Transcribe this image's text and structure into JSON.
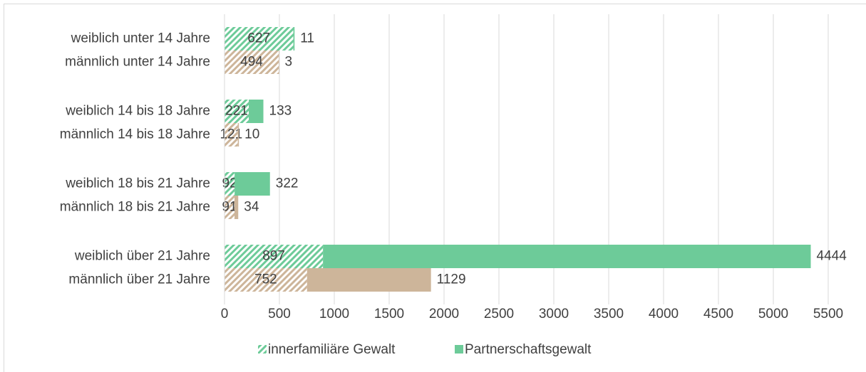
{
  "chart_data": {
    "type": "stacked_barh",
    "categories": [
      "weiblich unter 14 Jahre",
      "männlich unter 14 Jahre",
      "weiblich 14 bis 18 Jahre",
      "männlich 14 bis 18 Jahre",
      "weiblich 18 bis 21 Jahre",
      "männlich 18 bis 21 Jahre",
      "weiblich über 21 Jahre",
      "männlich über 21 Jahre"
    ],
    "bar_colors": [
      "#6dcb99",
      "#cdb59a",
      "#6dcb99",
      "#cdb59a",
      "#6dcb99",
      "#cdb59a",
      "#6dcb99",
      "#cdb59a"
    ],
    "series": [
      {
        "name": "innerfamiliäre Gewalt",
        "color": "#6dcb99",
        "hatch": true,
        "values": [
          627,
          494,
          221,
          121,
          92,
          91,
          897,
          752
        ]
      },
      {
        "name": "Partnerschaftsgewalt",
        "color": "#6dcb99",
        "hatch": false,
        "values": [
          11,
          3,
          133,
          10,
          322,
          34,
          4444,
          1129
        ]
      }
    ],
    "xlim": [
      0,
      5500
    ],
    "xticks": [
      0,
      500,
      1000,
      1500,
      2000,
      2500,
      3000,
      3500,
      4000,
      4500,
      5000,
      5500
    ],
    "grid": true,
    "legend": "bottom"
  }
}
